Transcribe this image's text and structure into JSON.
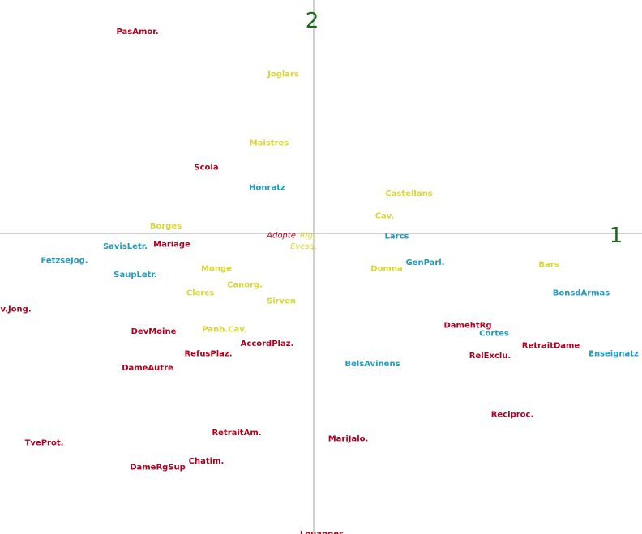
{
  "chart_data": {
    "type": "scatter",
    "title": "",
    "xlabel": "1",
    "ylabel": "2",
    "grid": false,
    "legend": "none",
    "colors": {
      "red": "#b00020",
      "blue": "#1f9ac0",
      "yellow": "#d8d832",
      "axis": "#a0a0a0",
      "axis_label": "#1a6a1a"
    },
    "points": [
      {
        "label": "PasAmor.",
        "x": -0.87,
        "y": 1.0,
        "color": "red"
      },
      {
        "label": "Joglars",
        "x": -0.15,
        "y": 0.79,
        "color": "yellow"
      },
      {
        "label": "Maistres",
        "x": -0.22,
        "y": 0.45,
        "color": "yellow"
      },
      {
        "label": "Scola",
        "x": -0.53,
        "y": 0.33,
        "color": "red"
      },
      {
        "label": "Honratz",
        "x": -0.23,
        "y": 0.23,
        "color": "blue"
      },
      {
        "label": "Castellans",
        "x": 0.47,
        "y": 0.2,
        "color": "yellow"
      },
      {
        "label": "Cav.",
        "x": 0.35,
        "y": 0.09,
        "color": "yellow"
      },
      {
        "label": "Borges",
        "x": -0.73,
        "y": 0.04,
        "color": "yellow"
      },
      {
        "label": "Adopte",
        "x": -0.16,
        "y": -0.005,
        "color": "red",
        "italic": true
      },
      {
        "label": "Rig.",
        "x": -0.03,
        "y": -0.005,
        "color": "yellow",
        "italic": true
      },
      {
        "label": "Larcs",
        "x": 0.41,
        "y": -0.01,
        "color": "blue"
      },
      {
        "label": "Bars",
        "x": 1.16,
        "y": -0.15,
        "color": "yellow"
      },
      {
        "label": "SavisLetr.",
        "x": -0.93,
        "y": -0.06,
        "color": "blue"
      },
      {
        "label": "Mariage",
        "x": -0.7,
        "y": -0.05,
        "color": "red"
      },
      {
        "label": "Evesq.",
        "x": -0.05,
        "y": -0.06,
        "color": "yellow",
        "italic": true
      },
      {
        "label": "FetzseJog.",
        "x": -1.23,
        "y": -0.13,
        "color": "blue"
      },
      {
        "label": "GenParl.",
        "x": 0.55,
        "y": -0.14,
        "color": "blue"
      },
      {
        "label": "Domna",
        "x": 0.36,
        "y": -0.17,
        "color": "yellow"
      },
      {
        "label": "Monge",
        "x": -0.48,
        "y": -0.17,
        "color": "yellow"
      },
      {
        "label": "SaupLetr.",
        "x": -0.88,
        "y": -0.2,
        "color": "blue"
      },
      {
        "label": "Canorg.",
        "x": -0.34,
        "y": -0.25,
        "color": "yellow"
      },
      {
        "label": "Clercs",
        "x": -0.56,
        "y": -0.29,
        "color": "yellow"
      },
      {
        "label": "Sirven",
        "x": -0.16,
        "y": -0.33,
        "color": "yellow"
      },
      {
        "label": "BonsdArmas",
        "x": 1.32,
        "y": -0.29,
        "color": "blue"
      },
      {
        "label": "Dev.Jong.",
        "x": -1.5,
        "y": -0.37,
        "color": "red"
      },
      {
        "label": "DamehtRg",
        "x": 0.76,
        "y": -0.45,
        "color": "red"
      },
      {
        "label": "DevMoine",
        "x": -0.79,
        "y": -0.48,
        "color": "red"
      },
      {
        "label": "Panb.Cav.",
        "x": -0.44,
        "y": -0.47,
        "color": "yellow"
      },
      {
        "label": "Cortes",
        "x": 0.89,
        "y": -0.49,
        "color": "blue"
      },
      {
        "label": "AccordPlaz.",
        "x": -0.23,
        "y": -0.54,
        "color": "red"
      },
      {
        "label": "RetraitDame",
        "x": 1.17,
        "y": -0.55,
        "color": "red"
      },
      {
        "label": "Enseignatz",
        "x": 1.48,
        "y": -0.59,
        "color": "blue"
      },
      {
        "label": "RefusPlaz.",
        "x": -0.52,
        "y": -0.59,
        "color": "red"
      },
      {
        "label": "RelExclu.",
        "x": 0.87,
        "y": -0.6,
        "color": "red"
      },
      {
        "label": "BelsAvinens",
        "x": 0.29,
        "y": -0.64,
        "color": "blue"
      },
      {
        "label": "DameAutre",
        "x": -0.82,
        "y": -0.66,
        "color": "red"
      },
      {
        "label": "Reciproc.",
        "x": 0.98,
        "y": -0.89,
        "color": "red"
      },
      {
        "label": "RetraitAm.",
        "x": -0.38,
        "y": -0.98,
        "color": "red"
      },
      {
        "label": "MariJalo.",
        "x": 0.17,
        "y": -1.01,
        "color": "red"
      },
      {
        "label": "TveProt.",
        "x": -1.33,
        "y": -1.03,
        "color": "red"
      },
      {
        "label": "Chatim.",
        "x": -0.53,
        "y": -1.12,
        "color": "red"
      },
      {
        "label": "DameRgSup",
        "x": -0.77,
        "y": -1.15,
        "color": "red"
      },
      {
        "label": "Louanges",
        "x": 0.04,
        "y": -1.48,
        "color": "red"
      }
    ]
  }
}
